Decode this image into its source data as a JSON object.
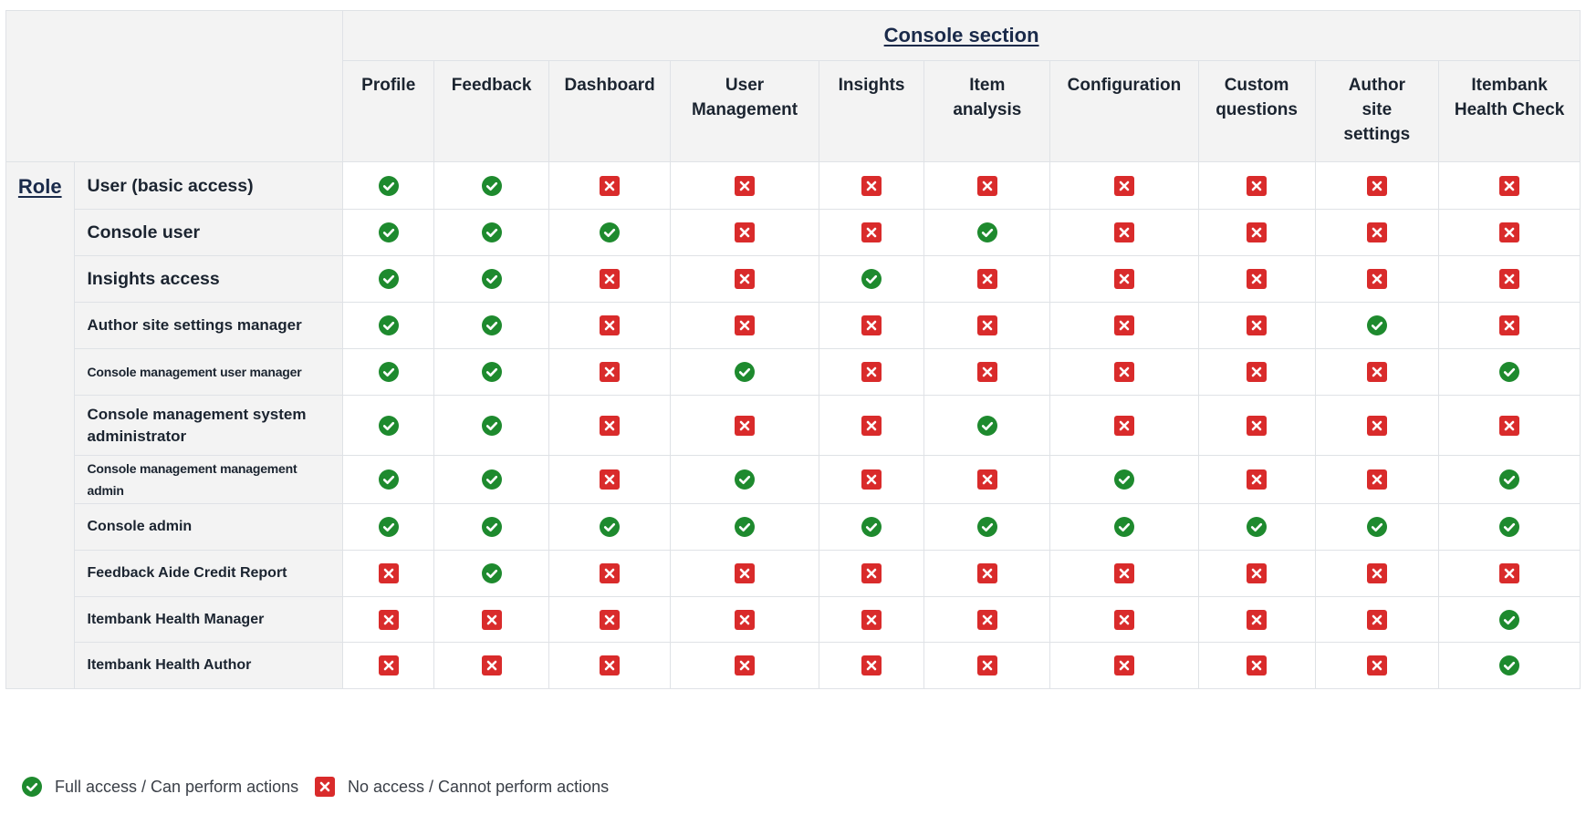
{
  "header": {
    "section_title": "Console section",
    "role_title": "Role"
  },
  "columns": [
    "Profile",
    "Feedback",
    "Dashboard",
    "User Management",
    "Insights",
    "Item analysis",
    "Configuration",
    "Custom questions",
    "Author site settings",
    "Itembank Health Check"
  ],
  "rows": [
    {
      "name": "User (basic access)",
      "access": [
        1,
        1,
        0,
        0,
        0,
        0,
        0,
        0,
        0,
        0
      ]
    },
    {
      "name": "Console user",
      "access": [
        1,
        1,
        1,
        0,
        0,
        1,
        0,
        0,
        0,
        0
      ]
    },
    {
      "name": "Insights access",
      "access": [
        1,
        1,
        0,
        0,
        1,
        0,
        0,
        0,
        0,
        0
      ]
    },
    {
      "name": "Author site settings manager",
      "access": [
        1,
        1,
        0,
        0,
        0,
        0,
        0,
        0,
        1,
        0
      ]
    },
    {
      "name": "Console management user manager",
      "access": [
        1,
        1,
        0,
        1,
        0,
        0,
        0,
        0,
        0,
        1
      ]
    },
    {
      "name": "Console management system administrator",
      "access": [
        1,
        1,
        0,
        0,
        0,
        1,
        0,
        0,
        0,
        0
      ]
    },
    {
      "name": "Console management management admin",
      "access": [
        1,
        1,
        0,
        1,
        0,
        0,
        1,
        0,
        0,
        1
      ]
    },
    {
      "name": "Console admin",
      "access": [
        1,
        1,
        1,
        1,
        1,
        1,
        1,
        1,
        1,
        1
      ]
    },
    {
      "name": "Feedback Aide Credit Report",
      "access": [
        0,
        1,
        0,
        0,
        0,
        0,
        0,
        0,
        0,
        0
      ]
    },
    {
      "name": "Itembank Health Manager",
      "access": [
        0,
        0,
        0,
        0,
        0,
        0,
        0,
        0,
        0,
        1
      ]
    },
    {
      "name": "Itembank Health Author",
      "access": [
        0,
        0,
        0,
        0,
        0,
        0,
        0,
        0,
        0,
        1
      ]
    }
  ],
  "legend": {
    "full_access": "Full access / Can perform actions",
    "no_access": "No access / Cannot perform actions"
  },
  "icons": {
    "check": "check-circle-icon",
    "cross": "x-square-icon"
  },
  "colors": {
    "check": "#1e8a2e",
    "cross": "#d92b2b",
    "separator": "#8cb0e6"
  }
}
